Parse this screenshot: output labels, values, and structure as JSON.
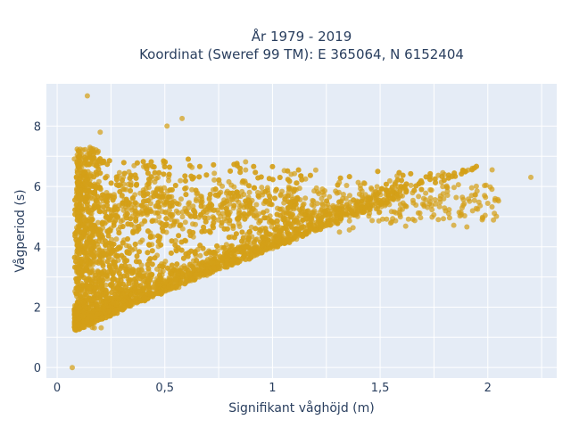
{
  "chart_data": {
    "type": "scatter",
    "title_lines": [
      "År 1979 - 2019",
      "Koordinat (Sweref 99 TM): E 365064, N 6152404"
    ],
    "xlabel": "Signifikant våghöjd (m)",
    "ylabel": "Vågperiod (s)",
    "xlim": [
      -0.05,
      2.32
    ],
    "ylim": [
      -0.35,
      9.4
    ],
    "x_ticks": [
      0,
      0.5,
      1,
      1.5,
      2
    ],
    "x_tick_labels": [
      "0",
      "0,5",
      "1",
      "1,5",
      "2"
    ],
    "y_ticks": [
      0,
      2,
      4,
      6,
      8
    ],
    "y_tick_labels": [
      "0",
      "2",
      "4",
      "6",
      "8"
    ],
    "grid": true,
    "marker_color": "#D4A017",
    "background_color": "#E5ECF6",
    "outliers": [
      {
        "x": 0.07,
        "y": 0.0
      },
      {
        "x": 0.14,
        "y": 9.0
      },
      {
        "x": 0.58,
        "y": 8.25
      },
      {
        "x": 0.51,
        "y": 8.0
      },
      {
        "x": 0.2,
        "y": 7.8
      },
      {
        "x": 2.2,
        "y": 6.3
      },
      {
        "x": 2.02,
        "y": 6.55
      },
      {
        "x": 1.95,
        "y": 5.85
      }
    ]
  }
}
